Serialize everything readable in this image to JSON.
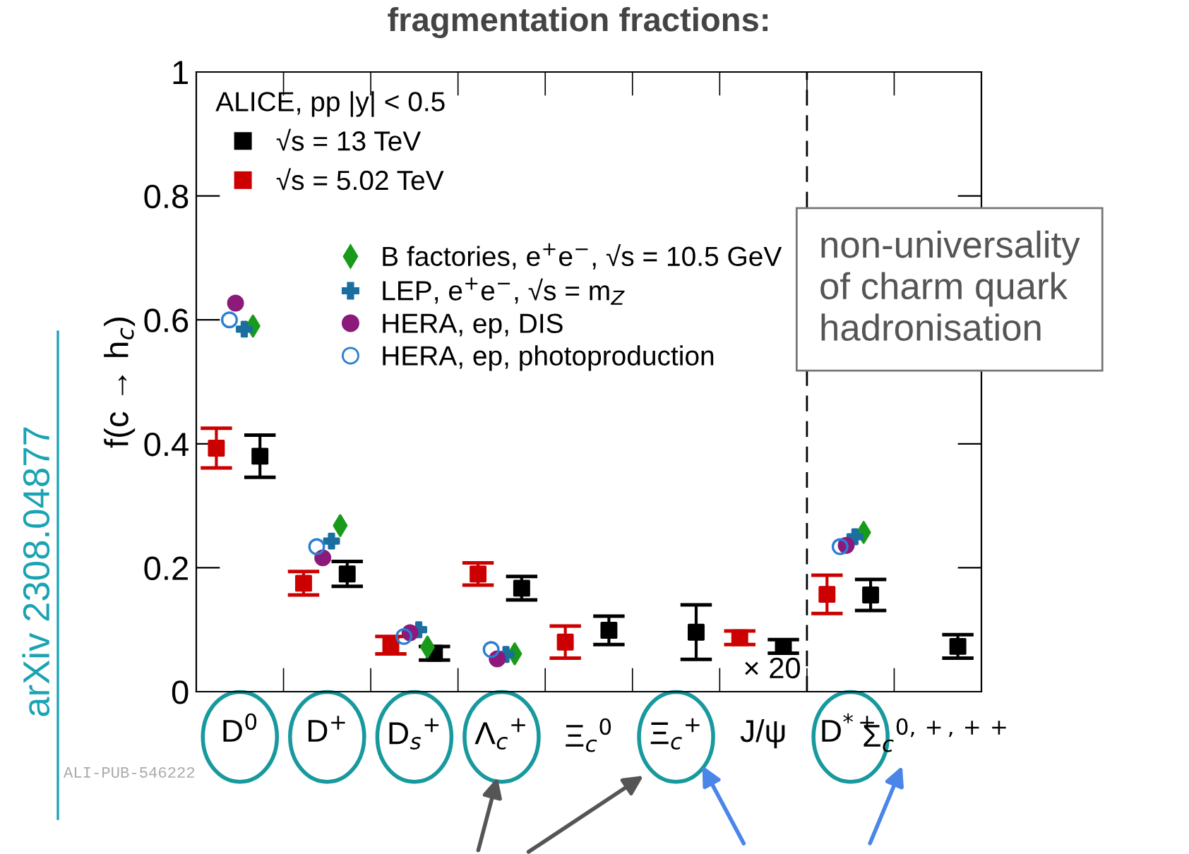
{
  "chart_data": {
    "type": "scatter",
    "title": "fragmentation fractions:",
    "ylabel": "f(c → h$_{c}$)",
    "legend_title": "ALICE, pp |y| < 0.5",
    "categories": [
      "D$^{0}$",
      "D$^{+}$",
      "D$_{s}$$^{+}$",
      "Λ$_{c}$$^{+}$",
      "Ξ$_{c}$$^{0}$",
      "Ξ$_{c}$$^{+}$",
      "J/ψ",
      "D$^{*+}$",
      "Σ$_{c}$$^{0,+,++}$"
    ],
    "series": [
      {
        "name": "√s = 13 TeV",
        "color": "#000000",
        "marker": "square",
        "values": [
          0.38,
          0.19,
          0.062,
          0.167,
          0.099,
          0.096,
          0.073,
          0.156,
          0.073
        ],
        "errors": [
          0.034,
          0.02,
          0.011,
          0.019,
          0.023,
          0.044,
          0.011,
          0.025,
          0.019
        ]
      },
      {
        "name": "√s = 5.02 TeV",
        "color": "#cc0000",
        "marker": "square",
        "values": [
          0.393,
          0.175,
          0.075,
          0.19,
          0.08,
          null,
          0.087,
          0.157,
          null
        ],
        "errors": [
          0.032,
          0.019,
          0.014,
          0.018,
          0.026,
          null,
          0.011,
          0.031,
          null
        ]
      },
      {
        "name": "B factories, e$^{+}$e$^{−}$, √s = 10.5 GeV",
        "color": "#1a9a1a",
        "marker": "diamond",
        "values": [
          0.59,
          0.268,
          0.072,
          0.061,
          null,
          null,
          null,
          0.257,
          null
        ]
      },
      {
        "name": "LEP, e$^{+}$e$^{−}$, √s = m$_{Z}$",
        "color": "#1a6ea0",
        "marker": "cross",
        "values": [
          0.585,
          0.243,
          0.1,
          0.06,
          null,
          null,
          null,
          0.25,
          null
        ]
      },
      {
        "name": "HERA, ep, DIS",
        "color": "#8b1a7a",
        "marker": "circle",
        "values": [
          0.627,
          0.216,
          0.095,
          0.053,
          null,
          null,
          null,
          0.236,
          null
        ]
      },
      {
        "name": "HERA, ep, photoproduction",
        "color": "#2a7fd4",
        "marker": "circle",
        "values": [
          0.6,
          0.234,
          0.089,
          0.068,
          null,
          null,
          null,
          0.234,
          null
        ]
      }
    ],
    "ylim": [
      0,
      1
    ],
    "yticks": [
      0,
      0.2,
      0.4,
      0.6,
      0.8,
      1
    ],
    "legend": "top left",
    "grid": false,
    "annotations": [
      "× 20",
      "non-universality\nof charm quark\nhadronisation",
      "arXiv 2308.04877",
      "ALI-PUB-546222"
    ]
  }
}
